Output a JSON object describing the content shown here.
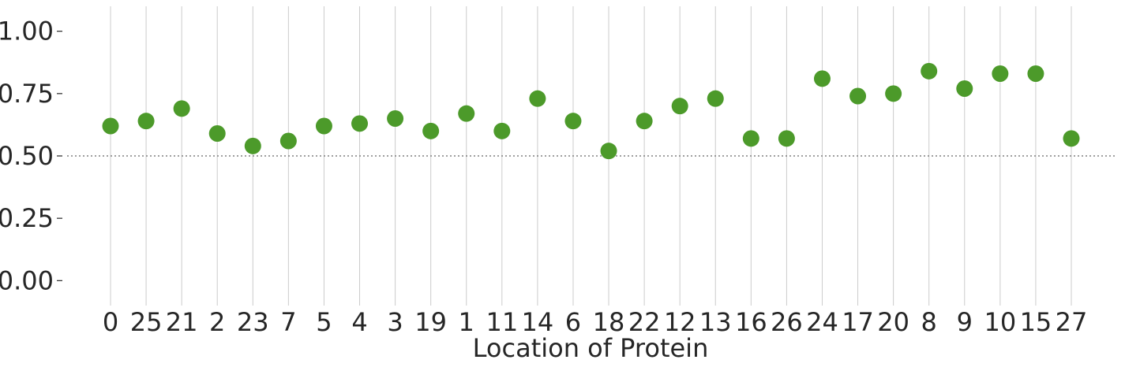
{
  "chart_data": {
    "type": "scatter",
    "xlabel": "Location of Protein",
    "ylabel": "",
    "categories": [
      "0",
      "25",
      "21",
      "2",
      "23",
      "7",
      "5",
      "4",
      "3",
      "19",
      "1",
      "11",
      "14",
      "6",
      "18",
      "22",
      "12",
      "13",
      "16",
      "26",
      "24",
      "17",
      "20",
      "8",
      "9",
      "10",
      "15",
      "27"
    ],
    "values": [
      0.62,
      0.64,
      0.69,
      0.59,
      0.54,
      0.56,
      0.62,
      0.63,
      0.65,
      0.6,
      0.67,
      0.6,
      0.73,
      0.64,
      0.52,
      0.64,
      0.7,
      0.73,
      0.57,
      0.57,
      0.81,
      0.74,
      0.75,
      0.84,
      0.77,
      0.83,
      0.83,
      0.57
    ],
    "yticks": [
      "0.00",
      "0.25",
      "0.50",
      "0.75",
      "1.00"
    ],
    "ytick_values": [
      0.0,
      0.25,
      0.5,
      0.75,
      1.0
    ],
    "ylim": [
      -0.1,
      1.1
    ],
    "reference_line": 0.5,
    "grid": "vertical",
    "marker_color": "#4c9a2a",
    "grid_color": "#cccccc",
    "reference_line_color": "#808080"
  }
}
